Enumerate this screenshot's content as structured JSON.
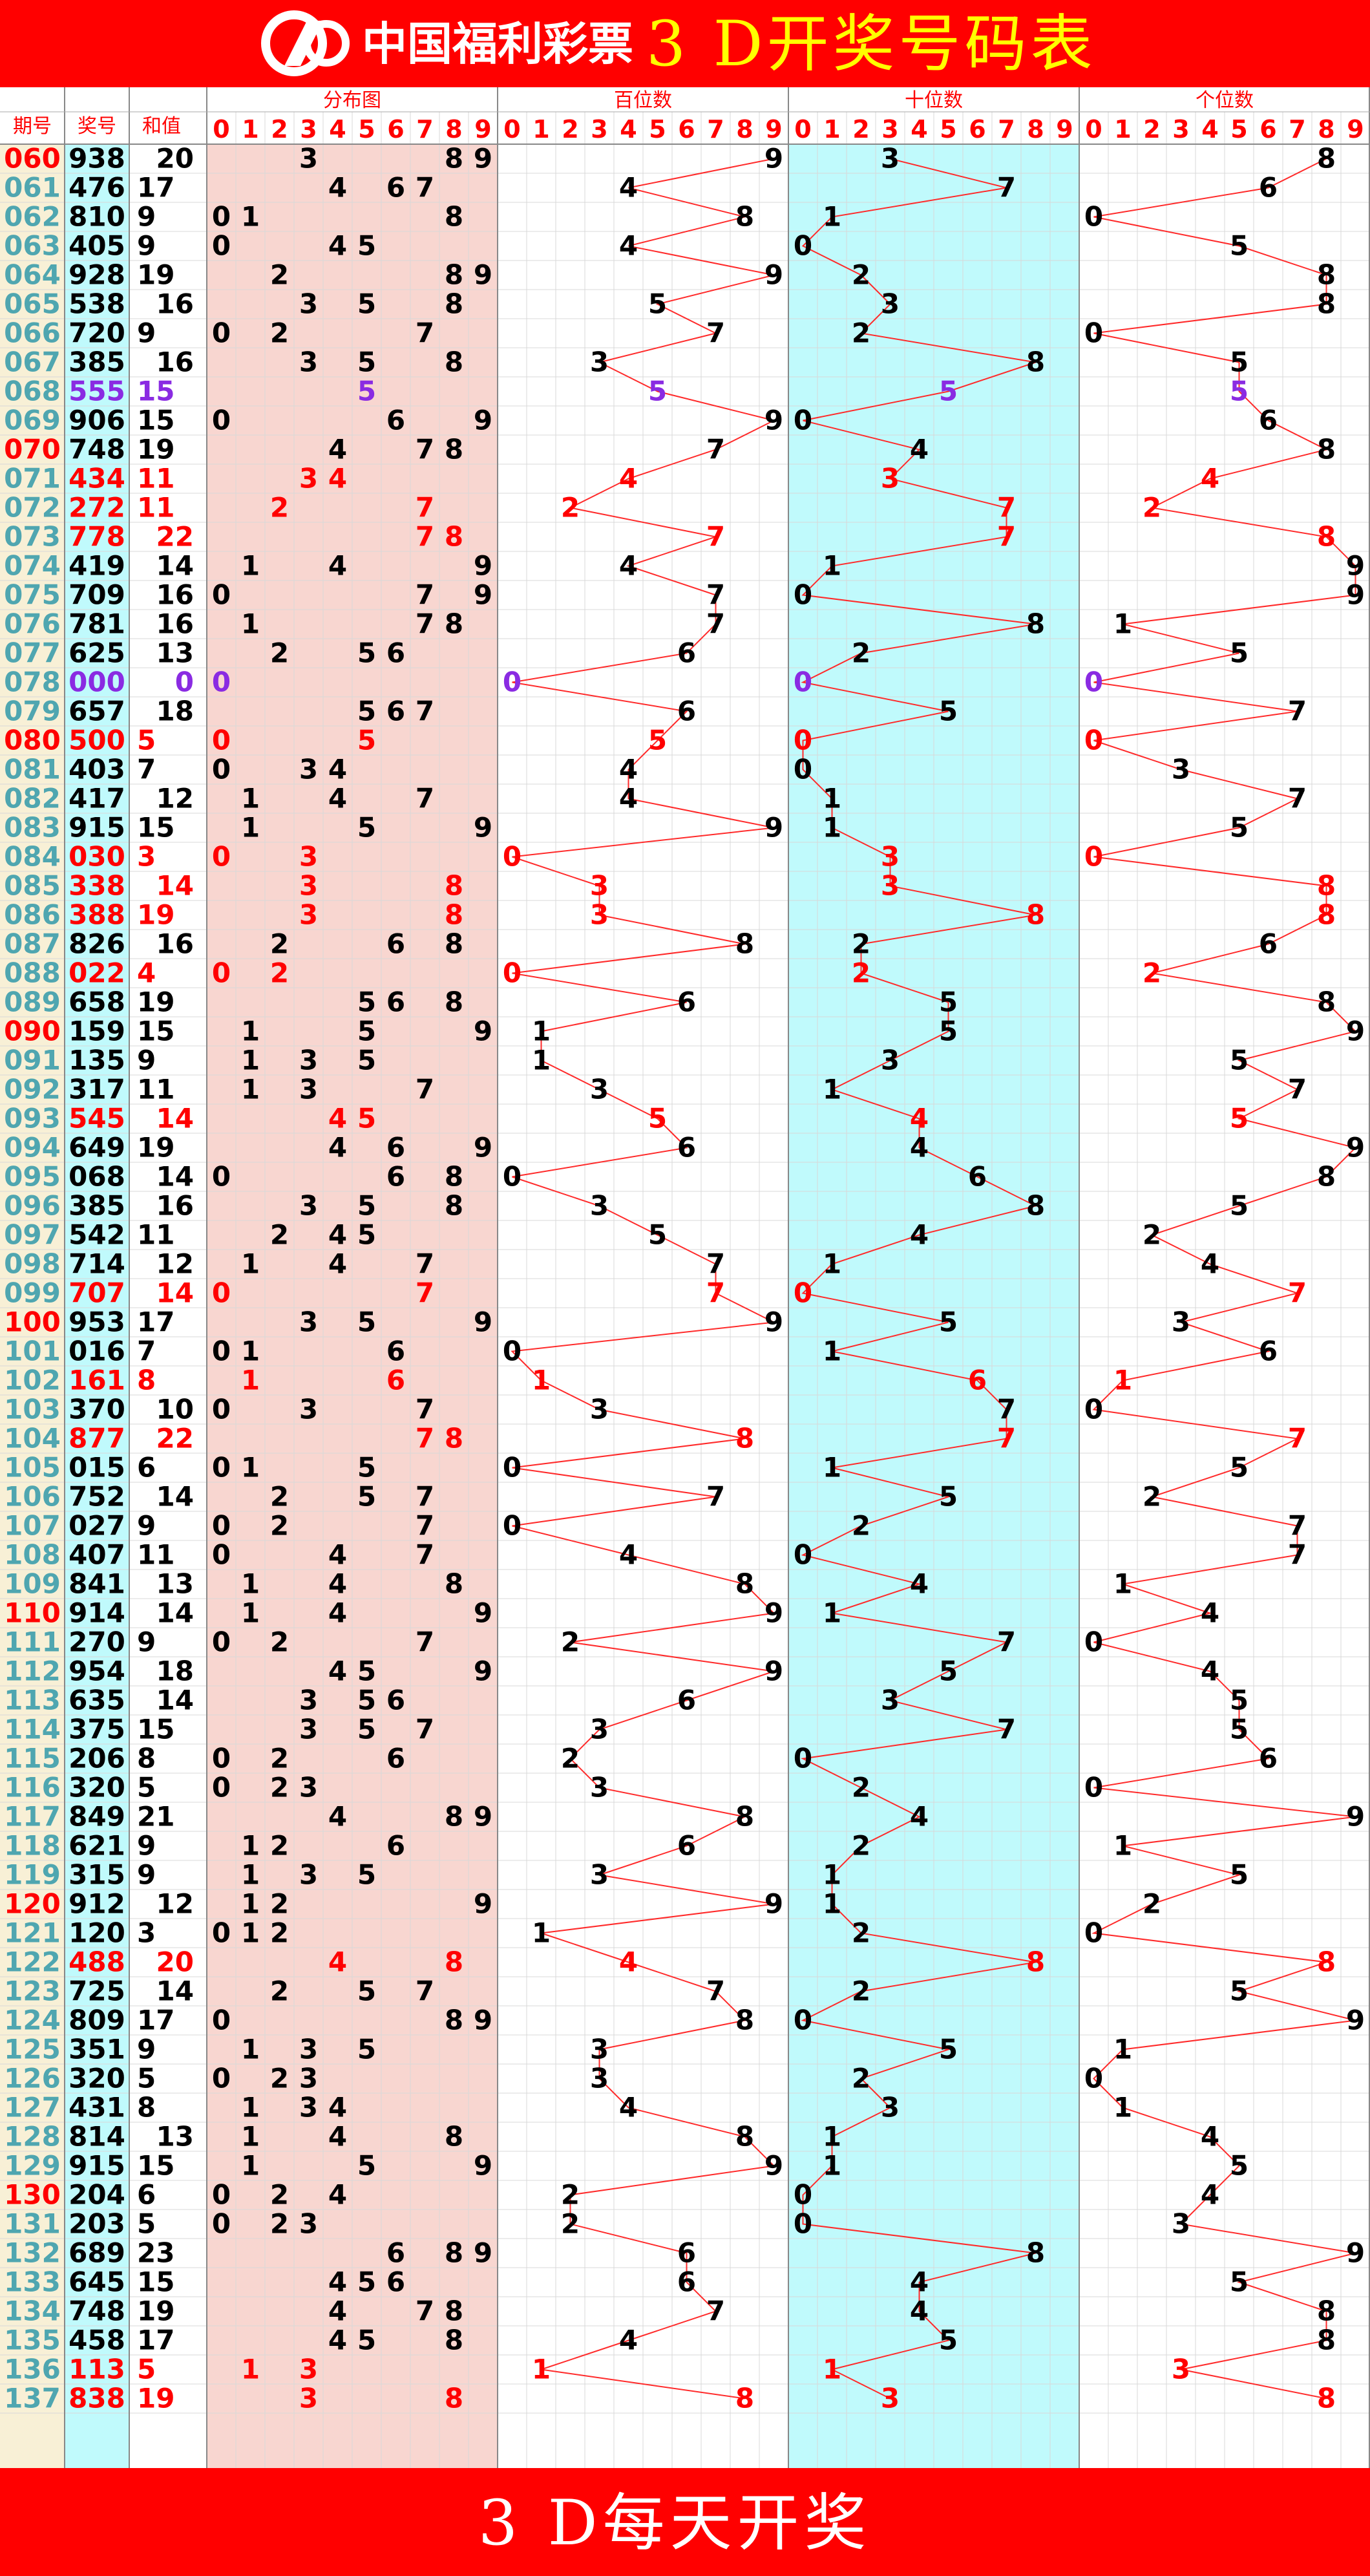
{
  "banner": {
    "brand": "中国福利彩票",
    "title": "3 D开奖号码表",
    "footer": "3 D每天开奖"
  },
  "colors": {
    "banner": "#ff0000",
    "title_text": "#ffff00",
    "period_col": "#f8f0d6",
    "number_col": "#c0fafc",
    "distribution_col": "#f8d6d0",
    "tens_col": "#c0fafc",
    "line": "#ff2a2a",
    "red_text": "#ff0000",
    "purple_text": "#8a2be2",
    "period_text": "#4fa6b0",
    "grid": "#d8d8d8"
  },
  "columns": {
    "period": "期号",
    "number": "奖号",
    "sum": "和值",
    "distribution": "分布图",
    "hundreds": "百位数",
    "tens": "十位数",
    "units": "个位数"
  },
  "digit_labels": [
    "0",
    "1",
    "2",
    "3",
    "4",
    "5",
    "6",
    "7",
    "8",
    "9"
  ],
  "chart_data": {
    "type": "table",
    "rows": [
      {
        "period": "060",
        "number": "938",
        "sum": "20"
      },
      {
        "period": "061",
        "number": "476",
        "sum": "17"
      },
      {
        "period": "062",
        "number": "810",
        "sum": "9"
      },
      {
        "period": "063",
        "number": "405",
        "sum": "9"
      },
      {
        "period": "064",
        "number": "928",
        "sum": "19"
      },
      {
        "period": "065",
        "number": "538",
        "sum": "16"
      },
      {
        "period": "066",
        "number": "720",
        "sum": "9"
      },
      {
        "period": "067",
        "number": "385",
        "sum": "16"
      },
      {
        "period": "068",
        "number": "555",
        "sum": "15"
      },
      {
        "period": "069",
        "number": "906",
        "sum": "15"
      },
      {
        "period": "070",
        "number": "748",
        "sum": "19"
      },
      {
        "period": "071",
        "number": "434",
        "sum": "11"
      },
      {
        "period": "072",
        "number": "272",
        "sum": "11"
      },
      {
        "period": "073",
        "number": "778",
        "sum": "22"
      },
      {
        "period": "074",
        "number": "419",
        "sum": "14"
      },
      {
        "period": "075",
        "number": "709",
        "sum": "16"
      },
      {
        "period": "076",
        "number": "781",
        "sum": "16"
      },
      {
        "period": "077",
        "number": "625",
        "sum": "13"
      },
      {
        "period": "078",
        "number": "000",
        "sum": "0"
      },
      {
        "period": "079",
        "number": "657",
        "sum": "18"
      },
      {
        "period": "080",
        "number": "500",
        "sum": "5"
      },
      {
        "period": "081",
        "number": "403",
        "sum": "7"
      },
      {
        "period": "082",
        "number": "417",
        "sum": "12"
      },
      {
        "period": "083",
        "number": "915",
        "sum": "15"
      },
      {
        "period": "084",
        "number": "030",
        "sum": "3"
      },
      {
        "period": "085",
        "number": "338",
        "sum": "14"
      },
      {
        "period": "086",
        "number": "388",
        "sum": "19"
      },
      {
        "period": "087",
        "number": "826",
        "sum": "16"
      },
      {
        "period": "088",
        "number": "022",
        "sum": "4"
      },
      {
        "period": "089",
        "number": "658",
        "sum": "19"
      },
      {
        "period": "090",
        "number": "159",
        "sum": "15"
      },
      {
        "period": "091",
        "number": "135",
        "sum": "9"
      },
      {
        "period": "092",
        "number": "317",
        "sum": "11"
      },
      {
        "period": "093",
        "number": "545",
        "sum": "14"
      },
      {
        "period": "094",
        "number": "649",
        "sum": "19"
      },
      {
        "period": "095",
        "number": "068",
        "sum": "14"
      },
      {
        "period": "096",
        "number": "385",
        "sum": "16"
      },
      {
        "period": "097",
        "number": "542",
        "sum": "11"
      },
      {
        "period": "098",
        "number": "714",
        "sum": "12"
      },
      {
        "period": "099",
        "number": "707",
        "sum": "14"
      },
      {
        "period": "100",
        "number": "953",
        "sum": "17"
      },
      {
        "period": "101",
        "number": "016",
        "sum": "7"
      },
      {
        "period": "102",
        "number": "161",
        "sum": "8"
      },
      {
        "period": "103",
        "number": "370",
        "sum": "10"
      },
      {
        "period": "104",
        "number": "877",
        "sum": "22"
      },
      {
        "period": "105",
        "number": "015",
        "sum": "6"
      },
      {
        "period": "106",
        "number": "752",
        "sum": "14"
      },
      {
        "period": "107",
        "number": "027",
        "sum": "9"
      },
      {
        "period": "108",
        "number": "407",
        "sum": "11"
      },
      {
        "period": "109",
        "number": "841",
        "sum": "13"
      },
      {
        "period": "110",
        "number": "914",
        "sum": "14"
      },
      {
        "period": "111",
        "number": "270",
        "sum": "9"
      },
      {
        "period": "112",
        "number": "954",
        "sum": "18"
      },
      {
        "period": "113",
        "number": "635",
        "sum": "14"
      },
      {
        "period": "114",
        "number": "375",
        "sum": "15"
      },
      {
        "period": "115",
        "number": "206",
        "sum": "8"
      },
      {
        "period": "116",
        "number": "320",
        "sum": "5"
      },
      {
        "period": "117",
        "number": "849",
        "sum": "21"
      },
      {
        "period": "118",
        "number": "621",
        "sum": "9"
      },
      {
        "period": "119",
        "number": "315",
        "sum": "9"
      },
      {
        "period": "120",
        "number": "912",
        "sum": "12"
      },
      {
        "period": "121",
        "number": "120",
        "sum": "3"
      },
      {
        "period": "122",
        "number": "488",
        "sum": "20"
      },
      {
        "period": "123",
        "number": "725",
        "sum": "14"
      },
      {
        "period": "124",
        "number": "809",
        "sum": "17"
      },
      {
        "period": "125",
        "number": "351",
        "sum": "9"
      },
      {
        "period": "126",
        "number": "320",
        "sum": "5"
      },
      {
        "period": "127",
        "number": "431",
        "sum": "8"
      },
      {
        "period": "128",
        "number": "814",
        "sum": "13"
      },
      {
        "period": "129",
        "number": "915",
        "sum": "15"
      },
      {
        "period": "130",
        "number": "204",
        "sum": "6"
      },
      {
        "period": "131",
        "number": "203",
        "sum": "5"
      },
      {
        "period": "132",
        "number": "689",
        "sum": "23"
      },
      {
        "period": "133",
        "number": "645",
        "sum": "15"
      },
      {
        "period": "134",
        "number": "748",
        "sum": "19"
      },
      {
        "period": "135",
        "number": "458",
        "sum": "17"
      },
      {
        "period": "136",
        "number": "113",
        "sum": "5"
      },
      {
        "period": "137",
        "number": "838",
        "sum": "19"
      }
    ]
  }
}
